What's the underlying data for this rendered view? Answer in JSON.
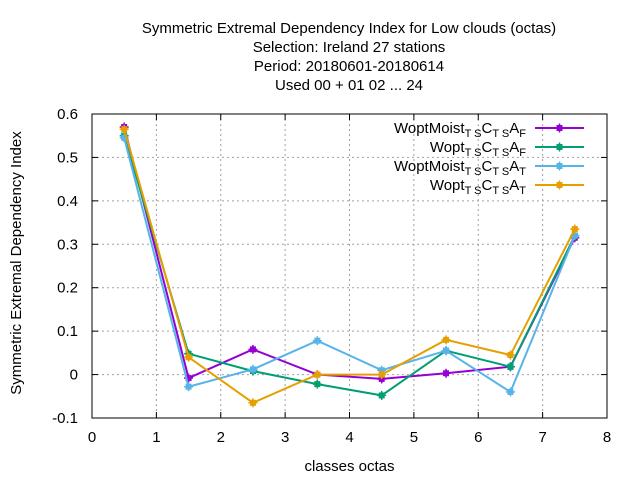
{
  "chart_data": {
    "type": "line",
    "title_lines": [
      "Symmetric Extremal Dependency Index  for Low clouds (octas)",
      "Selection: Ireland      27 stations",
      "Period: 20180601-20180614",
      "Used  00 + 01 02 ... 24"
    ],
    "xlabel": "classes octas",
    "ylabel": "Symmetric Extremal Dependency Index",
    "xlim": [
      0,
      8
    ],
    "ylim": [
      -0.1,
      0.6
    ],
    "xticks": [
      "0",
      "1",
      "2",
      "3",
      "4",
      "5",
      "6",
      "7",
      "8"
    ],
    "yticks": [
      "-0.1",
      "0",
      "0.1",
      "0.2",
      "0.3",
      "0.4",
      "0.5",
      "0.6"
    ],
    "grid": true,
    "legend_position": "top-right",
    "x": [
      0.5,
      1.5,
      2.5,
      3.5,
      4.5,
      5.5,
      6.5,
      7.5
    ],
    "series": [
      {
        "legend": {
          "base": "WoptMoist",
          "sub1": "T S",
          "mid": "C",
          "sub2": "T S",
          "end": "A",
          "sub3": "F"
        },
        "color": "#9400d3",
        "values": [
          0.57,
          -0.008,
          0.058,
          0.0,
          -0.01,
          0.003,
          0.018,
          0.315
        ]
      },
      {
        "legend": {
          "base": "Wopt",
          "sub1": "T S",
          "mid": "C",
          "sub2": "T S",
          "end": "A",
          "sub3": "F"
        },
        "color": "#009e73",
        "values": [
          0.55,
          0.048,
          0.008,
          -0.022,
          -0.048,
          0.055,
          0.018,
          0.32
        ]
      },
      {
        "legend": {
          "base": "WoptMoist",
          "sub1": "T S",
          "mid": "C",
          "sub2": "T S",
          "end": "A",
          "sub3": "T"
        },
        "color": "#56b4e9",
        "values": [
          0.545,
          -0.028,
          0.012,
          0.078,
          0.01,
          0.055,
          -0.04,
          0.32
        ]
      },
      {
        "legend": {
          "base": "Wopt",
          "sub1": "T S",
          "mid": "C",
          "sub2": "T S",
          "end": "A",
          "sub3": "T"
        },
        "color": "#e69f00",
        "values": [
          0.565,
          0.04,
          -0.065,
          0.0,
          0.0,
          0.08,
          0.045,
          0.335
        ]
      }
    ]
  }
}
